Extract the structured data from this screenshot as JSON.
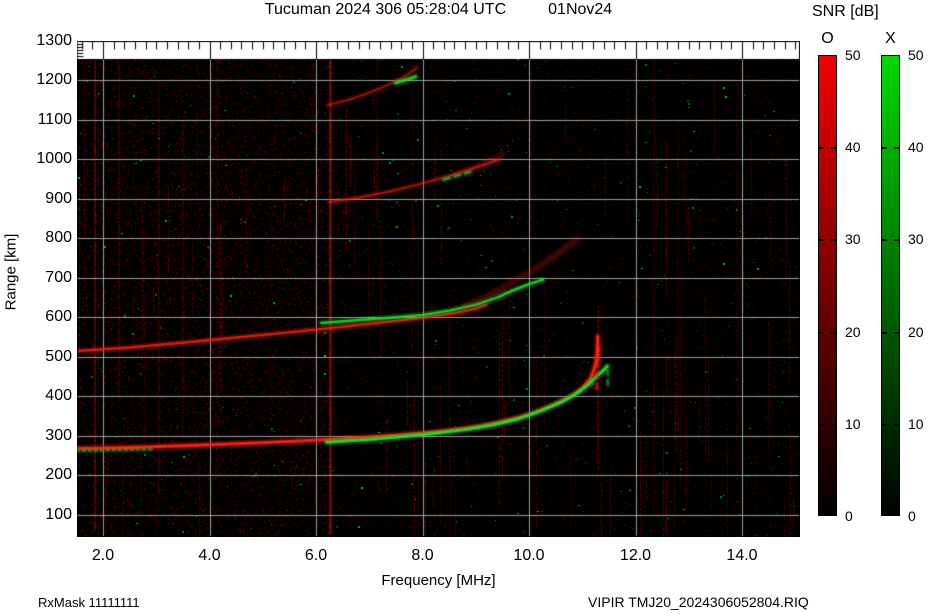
{
  "header": {
    "title": "Tucuman 2024 306 05:28:04 UTC",
    "date": "01Nov24"
  },
  "axes": {
    "x": {
      "label": "Frequency [MHz]"
    },
    "y": {
      "label": "Range [km]"
    }
  },
  "colorbar": {
    "title": "SNR [dB]",
    "max": 50,
    "ticks": [
      0,
      10,
      20,
      30,
      40,
      50
    ],
    "bars": [
      {
        "label": "O",
        "top_color": "#f20000"
      },
      {
        "label": "X",
        "top_color": "#00d900"
      }
    ]
  },
  "footer": {
    "left": "RxMask 11111111",
    "right": "VIPIR  TMJ20_2024306052804.RIQ"
  },
  "chart_data": {
    "type": "heatmap",
    "title": "Tucuman 2024 306 05:28:04 UTC",
    "date_label": "01Nov24",
    "xlabel": "Frequency [MHz]",
    "ylabel": "Range [km]",
    "xlim": [
      1.51,
      15.09
    ],
    "ylim": [
      44,
      1300
    ],
    "x_tick_values": [
      2,
      4,
      6,
      8,
      10,
      12,
      14
    ],
    "x_tick_labels": [
      "2.0",
      "4.0",
      "6.0",
      "8.0",
      "10.0",
      "12.0",
      "14.0"
    ],
    "y_tick_values": [
      100,
      200,
      300,
      400,
      500,
      600,
      700,
      800,
      900,
      1000,
      1100,
      1200,
      1300
    ],
    "y_tick_labels": [
      "100",
      "200",
      "300",
      "400",
      "500",
      "600",
      "700",
      "800",
      "900",
      "1000",
      "1100",
      "1200",
      "1300"
    ],
    "grid": {
      "x_mhz": [
        2,
        4,
        6,
        8,
        10,
        12,
        14
      ],
      "y_km": [
        100,
        200,
        300,
        400,
        500,
        600,
        700,
        800,
        900,
        1000,
        1100,
        1200
      ]
    },
    "snr_scale_db": [
      0,
      50
    ],
    "modes": {
      "O": "#ff2010",
      "X": "#18e428"
    },
    "traces": [
      {
        "name": "F2-1hop-O",
        "mode": "O",
        "width": 3,
        "alpha": 0.95,
        "points": [
          [
            1.51,
            268
          ],
          [
            2.5,
            271
          ],
          [
            3.5,
            275
          ],
          [
            4.5,
            280
          ],
          [
            5.5,
            286
          ],
          [
            6.5,
            293
          ],
          [
            7.5,
            302
          ],
          [
            8.0,
            307
          ],
          [
            8.5,
            314
          ],
          [
            9.0,
            323
          ],
          [
            9.5,
            336
          ],
          [
            10.0,
            354
          ],
          [
            10.4,
            375
          ],
          [
            10.8,
            400
          ],
          [
            11.0,
            420
          ],
          [
            11.15,
            445
          ],
          [
            11.22,
            468
          ],
          [
            11.27,
            492
          ],
          [
            11.3,
            522
          ]
        ]
      },
      {
        "name": "F2-1hop-X",
        "mode": "X",
        "width": 3,
        "alpha": 0.92,
        "points": [
          [
            6.2,
            284
          ],
          [
            7.0,
            291
          ],
          [
            7.6,
            298
          ],
          [
            8.2,
            306
          ],
          [
            8.8,
            316
          ],
          [
            9.3,
            327
          ],
          [
            9.8,
            343
          ],
          [
            10.2,
            362
          ],
          [
            10.6,
            385
          ],
          [
            10.9,
            408
          ],
          [
            11.1,
            428
          ],
          [
            11.25,
            448
          ],
          [
            11.38,
            464
          ],
          [
            11.47,
            476
          ]
        ]
      },
      {
        "name": "F2-1hop-X-low",
        "mode": "X",
        "width": 2,
        "alpha": 0.55,
        "dash": [
          2,
          4
        ],
        "points": [
          [
            1.51,
            262
          ],
          [
            2.0,
            264
          ],
          [
            2.5,
            265
          ],
          [
            2.9,
            266
          ]
        ]
      },
      {
        "name": "O-cusp-spread-low",
        "mode": "O",
        "width": 3,
        "alpha": 0.5,
        "dash": [
          5,
          6
        ],
        "points": [
          [
            11.27,
            420
          ],
          [
            11.28,
            495
          ]
        ]
      },
      {
        "name": "O-cusp-spread-high",
        "mode": "O",
        "width": 3,
        "alpha": 0.95,
        "points": [
          [
            11.29,
            497
          ],
          [
            11.29,
            552
          ]
        ]
      },
      {
        "name": "X-cusp-spread",
        "mode": "X",
        "width": 2,
        "alpha": 0.55,
        "dash": [
          4,
          6
        ],
        "points": [
          [
            11.48,
            430
          ],
          [
            11.48,
            472
          ]
        ]
      },
      {
        "name": "F2-2hop-O",
        "mode": "O",
        "width": 2.5,
        "alpha": 0.8,
        "points": [
          [
            1.51,
            515
          ],
          [
            2.5,
            524
          ],
          [
            3.5,
            536
          ],
          [
            4.5,
            549
          ],
          [
            5.5,
            562
          ],
          [
            6.5,
            576
          ],
          [
            7.5,
            591
          ],
          [
            8.2,
            602
          ],
          [
            8.7,
            613
          ],
          [
            9.0,
            622
          ],
          [
            9.2,
            632
          ]
        ]
      },
      {
        "name": "F2-2hop-X",
        "mode": "X",
        "width": 2.5,
        "alpha": 0.85,
        "points": [
          [
            6.1,
            586
          ],
          [
            6.8,
            593
          ],
          [
            7.4,
            599
          ],
          [
            8.0,
            606
          ],
          [
            8.5,
            617
          ],
          [
            9.0,
            632
          ],
          [
            9.4,
            650
          ],
          [
            9.7,
            668
          ],
          [
            10.0,
            684
          ],
          [
            10.26,
            695
          ]
        ]
      },
      {
        "name": "F2-2hop-O-diffuse",
        "mode": "O",
        "width": 6,
        "alpha": 0.18,
        "points": [
          [
            8.8,
            630
          ],
          [
            9.2,
            652
          ],
          [
            9.5,
            674
          ],
          [
            9.8,
            698
          ],
          [
            10.1,
            722
          ],
          [
            10.45,
            752
          ],
          [
            10.7,
            778
          ],
          [
            10.9,
            796
          ]
        ]
      },
      {
        "name": "F2-3hop-O",
        "mode": "O",
        "width": 2,
        "alpha": 0.6,
        "points": [
          [
            6.26,
            892
          ],
          [
            6.8,
            903
          ],
          [
            7.3,
            916
          ],
          [
            7.8,
            932
          ],
          [
            8.3,
            950
          ],
          [
            8.7,
            966
          ],
          [
            9.0,
            979
          ],
          [
            9.25,
            990
          ],
          [
            9.46,
            1000
          ]
        ]
      },
      {
        "name": "F2-3hop-X",
        "mode": "X",
        "width": 2,
        "alpha": 0.7,
        "dash": [
          6,
          5
        ],
        "points": [
          [
            8.4,
            948
          ],
          [
            8.7,
            960
          ],
          [
            8.95,
            970
          ]
        ]
      },
      {
        "name": "F2-3hop-O-diffuse",
        "mode": "O",
        "width": 5,
        "alpha": 0.15,
        "points": [
          [
            8.6,
            962
          ],
          [
            9.0,
            982
          ],
          [
            9.3,
            1000
          ],
          [
            9.5,
            1014
          ]
        ]
      },
      {
        "name": "F2-4hop-O",
        "mode": "O",
        "width": 2,
        "alpha": 0.5,
        "points": [
          [
            6.23,
            1137
          ],
          [
            6.6,
            1150
          ],
          [
            7.0,
            1168
          ],
          [
            7.35,
            1188
          ],
          [
            7.65,
            1208
          ],
          [
            7.9,
            1232
          ]
        ]
      },
      {
        "name": "F2-4hop-X",
        "mode": "X",
        "width": 3,
        "alpha": 0.8,
        "points": [
          [
            7.5,
            1193
          ],
          [
            7.7,
            1201
          ],
          [
            7.87,
            1209
          ]
        ]
      }
    ],
    "rfi_columns": [
      {
        "freq": 6.27,
        "strength": 0.45,
        "width": 3,
        "r_min": 50,
        "r_max": 1250
      },
      {
        "freq": 6.65,
        "strength": 0.22,
        "width": 2,
        "r_min": 930,
        "r_max": 1060
      },
      {
        "freq": 1.85,
        "strength": 0.3,
        "width": 2,
        "r_min": 60,
        "r_max": 1250
      },
      {
        "freq": 2.3,
        "strength": 0.15,
        "width": 2,
        "r_min": 400,
        "r_max": 1250
      },
      {
        "freq": 3.05,
        "strength": 0.14,
        "width": 2,
        "r_min": 150,
        "r_max": 1200
      },
      {
        "freq": 3.5,
        "strength": 0.13,
        "width": 2,
        "r_min": 300,
        "r_max": 1100
      },
      {
        "freq": 4.15,
        "strength": 0.12,
        "width": 2,
        "r_min": 200,
        "r_max": 1250
      },
      {
        "freq": 7.15,
        "strength": 0.12,
        "width": 2,
        "r_min": 850,
        "r_max": 1250
      },
      {
        "freq": 12.35,
        "strength": 0.12,
        "width": 2,
        "r_min": 100,
        "r_max": 1250
      },
      {
        "freq": 12.8,
        "strength": 0.1,
        "width": 2,
        "r_min": 300,
        "r_max": 1100
      },
      {
        "freq": 13.9,
        "strength": 0.09,
        "width": 2,
        "r_min": 200,
        "r_max": 1200
      }
    ],
    "noise": {
      "seed": 1234,
      "red_speckle": 10000,
      "left_extra": 7000,
      "columns": 110,
      "green_dots": 430
    }
  }
}
